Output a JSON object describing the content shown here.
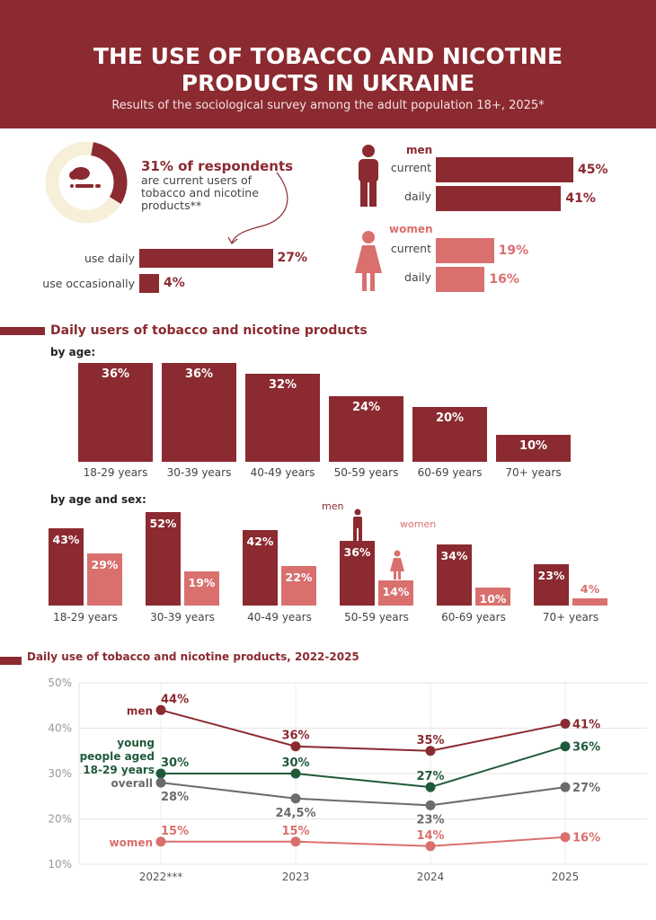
{
  "colors": {
    "primary": "#8b2a30",
    "women": "#d9706e",
    "young": "#1f5a3a",
    "overall": "#6b6b6b",
    "donut_bg": "#f7efd9"
  },
  "header": {
    "title_line1": "THE USE OF TOBACCO AND NICOTINE",
    "title_line2": "PRODUCTS IN UKRAINE",
    "subtitle": "Results of the sociological survey among the adult population 18+, 2025*"
  },
  "summary": {
    "headline": "31% of respondents",
    "text_line1": "are current users of",
    "text_line2": "tobacco and nicotine",
    "text_line3": "products**",
    "donut_value": 31,
    "icon": "cigarette-smoke-icon",
    "bars": [
      {
        "label": "use daily",
        "value": 27,
        "text": "27%"
      },
      {
        "label": "use occasionally",
        "value": 4,
        "text": "4%"
      }
    ]
  },
  "sex": {
    "men": {
      "title": "men",
      "icon": "man-icon",
      "bars": [
        {
          "label": "current",
          "value": 45,
          "text": "45%"
        },
        {
          "label": "daily",
          "value": 41,
          "text": "41%"
        }
      ]
    },
    "women": {
      "title": "women",
      "icon": "woman-icon",
      "bars": [
        {
          "label": "current",
          "value": 19,
          "text": "19%"
        },
        {
          "label": "daily",
          "value": 16,
          "text": "16%"
        }
      ]
    }
  },
  "daily_section": {
    "title": "Daily users of tobacco and nicotine products",
    "by_age": "by age:",
    "by_age_sex": "by age and sex:",
    "men_label": "men",
    "women_label": "women"
  },
  "line_section": {
    "title": "Daily use of tobacco and nicotine products, 2022-2025"
  },
  "chart_data": [
    {
      "type": "bar",
      "title": "by age:",
      "categories": [
        "18-29 years",
        "30-39 years",
        "40-49 years",
        "50-59 years",
        "60-69 years",
        "70+ years"
      ],
      "values": [
        36,
        36,
        32,
        24,
        20,
        10
      ],
      "labels": [
        "36%",
        "36%",
        "32%",
        "24%",
        "20%",
        "10%"
      ]
    },
    {
      "type": "bar",
      "title": "by age and sex:",
      "categories": [
        "18-29 years",
        "30-39 years",
        "40-49 years",
        "50-59 years",
        "60-69 years",
        "70+ years"
      ],
      "series": [
        {
          "name": "men",
          "values": [
            43,
            52,
            42,
            36,
            34,
            23
          ],
          "labels": [
            "43%",
            "52%",
            "42%",
            "36%",
            "34%",
            "23%"
          ]
        },
        {
          "name": "women",
          "values": [
            29,
            19,
            22,
            14,
            10,
            4
          ],
          "labels": [
            "29%",
            "19%",
            "22%",
            "14%",
            "10%",
            "4%"
          ]
        }
      ]
    },
    {
      "type": "line",
      "title": "Daily use of tobacco and nicotine products, 2022-2025",
      "x": [
        "2022***",
        "2023",
        "2024",
        "2025"
      ],
      "ylim": [
        10,
        50
      ],
      "yticks": [
        "10%",
        "20%",
        "30%",
        "40%",
        "50%"
      ],
      "grid": true,
      "series": [
        {
          "name": "men",
          "values": [
            44,
            36,
            35,
            41
          ],
          "labels": [
            "44%",
            "36%",
            "35%",
            "41%"
          ]
        },
        {
          "name": "young people aged 18-29 years",
          "values": [
            30,
            30,
            27,
            36
          ],
          "labels": [
            "30%",
            "30%",
            "27%",
            "36%"
          ]
        },
        {
          "name": "overall",
          "values": [
            28,
            24.5,
            23,
            27
          ],
          "labels": [
            "28%",
            "24,5%",
            "23%",
            "27%"
          ]
        },
        {
          "name": "women",
          "values": [
            15,
            15,
            14,
            16
          ],
          "labels": [
            "15%",
            "15%",
            "14%",
            "16%"
          ]
        }
      ]
    }
  ]
}
